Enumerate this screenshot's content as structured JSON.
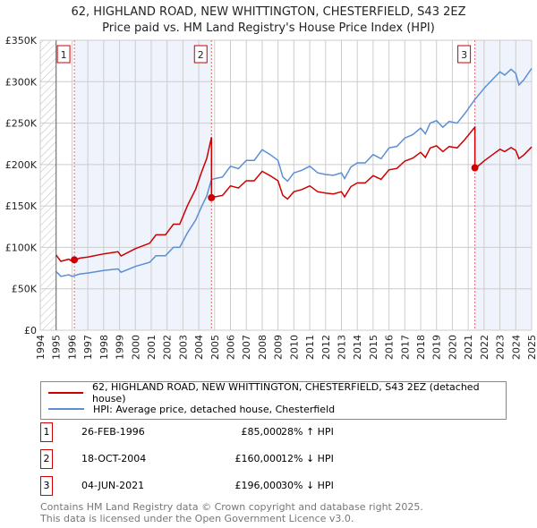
{
  "chart_data": {
    "type": "line",
    "title": "62, HIGHLAND ROAD, NEW WHITTINGTON, CHESTERFIELD, S43 2EZ",
    "subtitle": "Price paid vs. HM Land Registry's House Price Index (HPI)",
    "xlim": [
      1994,
      2025
    ],
    "ylim": [
      0,
      350000
    ],
    "x_ticks": [
      "1994",
      "1995",
      "1996",
      "1997",
      "1998",
      "1999",
      "2000",
      "2001",
      "2002",
      "2003",
      "2004",
      "2005",
      "2006",
      "2007",
      "2008",
      "2009",
      "2010",
      "2011",
      "2012",
      "2013",
      "2014",
      "2015",
      "2016",
      "2017",
      "2018",
      "2019",
      "2020",
      "2021",
      "2022",
      "2023",
      "2024",
      "2025"
    ],
    "y_ticks": [
      {
        "v": 0,
        "l": "£0"
      },
      {
        "v": 50000,
        "l": "£50K"
      },
      {
        "v": 100000,
        "l": "£100K"
      },
      {
        "v": 150000,
        "l": "£150K"
      },
      {
        "v": 200000,
        "l": "£200K"
      },
      {
        "v": 250000,
        "l": "£250K"
      },
      {
        "v": 300000,
        "l": "£300K"
      },
      {
        "v": 350000,
        "l": "£350K"
      }
    ],
    "hpi": [
      [
        1995,
        71
      ],
      [
        1995.3,
        65
      ],
      [
        1995.8,
        67
      ],
      [
        1996,
        65
      ],
      [
        1996.5,
        68
      ],
      [
        1997,
        69
      ],
      [
        1998,
        72
      ],
      [
        1998.9,
        74
      ],
      [
        1999.1,
        70
      ],
      [
        2000,
        77
      ],
      [
        2000.9,
        82
      ],
      [
        2001.3,
        90
      ],
      [
        2001.9,
        90
      ],
      [
        2002.4,
        100
      ],
      [
        2002.8,
        100
      ],
      [
        2003.3,
        118
      ],
      [
        2003.8,
        133
      ],
      [
        2004.2,
        150
      ],
      [
        2004.5,
        162
      ],
      [
        2004.8,
        182
      ],
      [
        2005.5,
        185
      ],
      [
        2006,
        198
      ],
      [
        2006.5,
        195
      ],
      [
        2007,
        205
      ],
      [
        2007.5,
        205
      ],
      [
        2008,
        218
      ],
      [
        2008.5,
        212
      ],
      [
        2009,
        205
      ],
      [
        2009.3,
        185
      ],
      [
        2009.6,
        180
      ],
      [
        2010,
        190
      ],
      [
        2010.5,
        193
      ],
      [
        2011,
        198
      ],
      [
        2011.5,
        190
      ],
      [
        2012,
        188
      ],
      [
        2012.5,
        187
      ],
      [
        2013,
        190
      ],
      [
        2013.2,
        183
      ],
      [
        2013.6,
        197
      ],
      [
        2014,
        202
      ],
      [
        2014.5,
        202
      ],
      [
        2015,
        212
      ],
      [
        2015.5,
        207
      ],
      [
        2016,
        220
      ],
      [
        2016.5,
        222
      ],
      [
        2017,
        232
      ],
      [
        2017.5,
        236
      ],
      [
        2018,
        244
      ],
      [
        2018.3,
        237
      ],
      [
        2018.6,
        250
      ],
      [
        2019,
        253
      ],
      [
        2019.4,
        245
      ],
      [
        2019.8,
        252
      ],
      [
        2020.3,
        250
      ],
      [
        2020.8,
        262
      ],
      [
        2021.4,
        278
      ],
      [
        2022,
        292
      ],
      [
        2022.5,
        302
      ],
      [
        2023,
        312
      ],
      [
        2023.3,
        308
      ],
      [
        2023.7,
        315
      ],
      [
        2024,
        310
      ],
      [
        2024.2,
        296
      ],
      [
        2024.5,
        302
      ],
      [
        2025,
        316
      ]
    ],
    "series": [
      {
        "name": "62, HIGHLAND ROAD, NEW WHITTINGTON, CHESTERFIELD, S43 2EZ (detached house)",
        "color": "#cc0000"
      },
      {
        "name": "HPI: Average price, detached house, Chesterfield",
        "color": "#5b8fd4"
      }
    ],
    "sales": [
      {
        "n": "1",
        "x": 1996.15,
        "date": "26-FEB-1996",
        "price": 85000,
        "price_label": "£85,000",
        "hpi": "28% ↑ HPI",
        "ratio": 1.28
      },
      {
        "n": "2",
        "x": 2004.8,
        "date": "18-OCT-2004",
        "price": 160000,
        "price_label": "£160,000",
        "hpi": "12% ↓ HPI",
        "ratio": 0.88
      },
      {
        "n": "3",
        "x": 2021.42,
        "date": "04-JUN-2021",
        "price": 196000,
        "price_label": "£196,000",
        "hpi": "30% ↓ HPI",
        "ratio": 0.7
      }
    ]
  },
  "footer": {
    "line1": "Contains HM Land Registry data © Crown copyright and database right 2025.",
    "line2": "This data is licensed under the Open Government Licence v3.0."
  }
}
